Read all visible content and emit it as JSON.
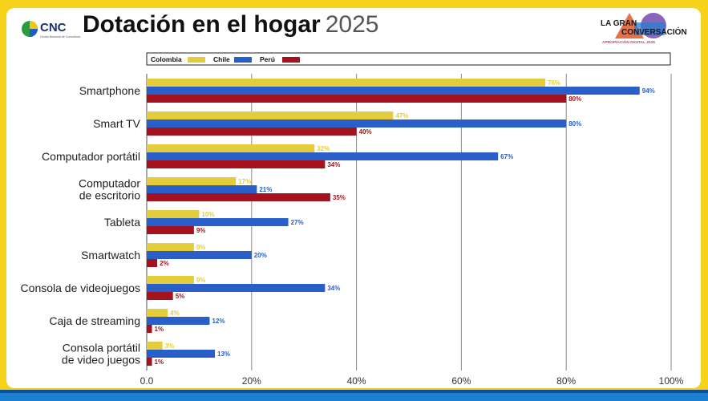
{
  "header": {
    "logo_text": "CNC",
    "logo_subtext": "Centro Nacional de Consultoría",
    "title_bold": "Dotación en el hogar",
    "title_year": "2025",
    "corner_logo_text_1": "LA GRAN",
    "corner_logo_text_2": "CONVERSACIÓN",
    "corner_logo_subtext": "APROPIACIÓN DIGITAL 2025"
  },
  "colors": {
    "colombia": "#e3cd3c",
    "chile": "#2a5ec9",
    "peru": "#a3121d",
    "grid": "#8a8a8a"
  },
  "chart_data": {
    "type": "bar",
    "orientation": "horizontal",
    "categories": [
      "Smartphone",
      "Smart TV",
      "Computador portátil",
      "Computador\nde escritorio",
      "Tableta",
      "Smartwatch",
      "Consola de videojuegos",
      "Caja de streaming",
      "Consola portátil\nde video juegos"
    ],
    "series": [
      {
        "name": "Colombia",
        "values": [
          76,
          47,
          32,
          17,
          10,
          9,
          9,
          4,
          3
        ],
        "labels": [
          "76%",
          "47%",
          "32%",
          "17%",
          "10%",
          "9%",
          "9%",
          "4%",
          "3%"
        ]
      },
      {
        "name": "Chile",
        "values": [
          94,
          80,
          67,
          21,
          27,
          20,
          34,
          12,
          13
        ],
        "labels": [
          "94%",
          "80%",
          "67%",
          "21%",
          "27%",
          "20%",
          "34%",
          "12%",
          "13%"
        ]
      },
      {
        "name": "Perú",
        "values": [
          80,
          40,
          34,
          35,
          9,
          2,
          5,
          1,
          1
        ],
        "labels": [
          "80%",
          "40%",
          "34%",
          "35%",
          "9%",
          "2%",
          "5%",
          "1%",
          "1%"
        ]
      }
    ],
    "xlim": [
      0,
      100
    ],
    "xticks": [
      0,
      20,
      40,
      60,
      80,
      100
    ],
    "xtick_labels": [
      "0.0",
      "20%",
      "40%",
      "60%",
      "80%",
      "100%"
    ],
    "grid": true,
    "legend_position": "top-left"
  }
}
